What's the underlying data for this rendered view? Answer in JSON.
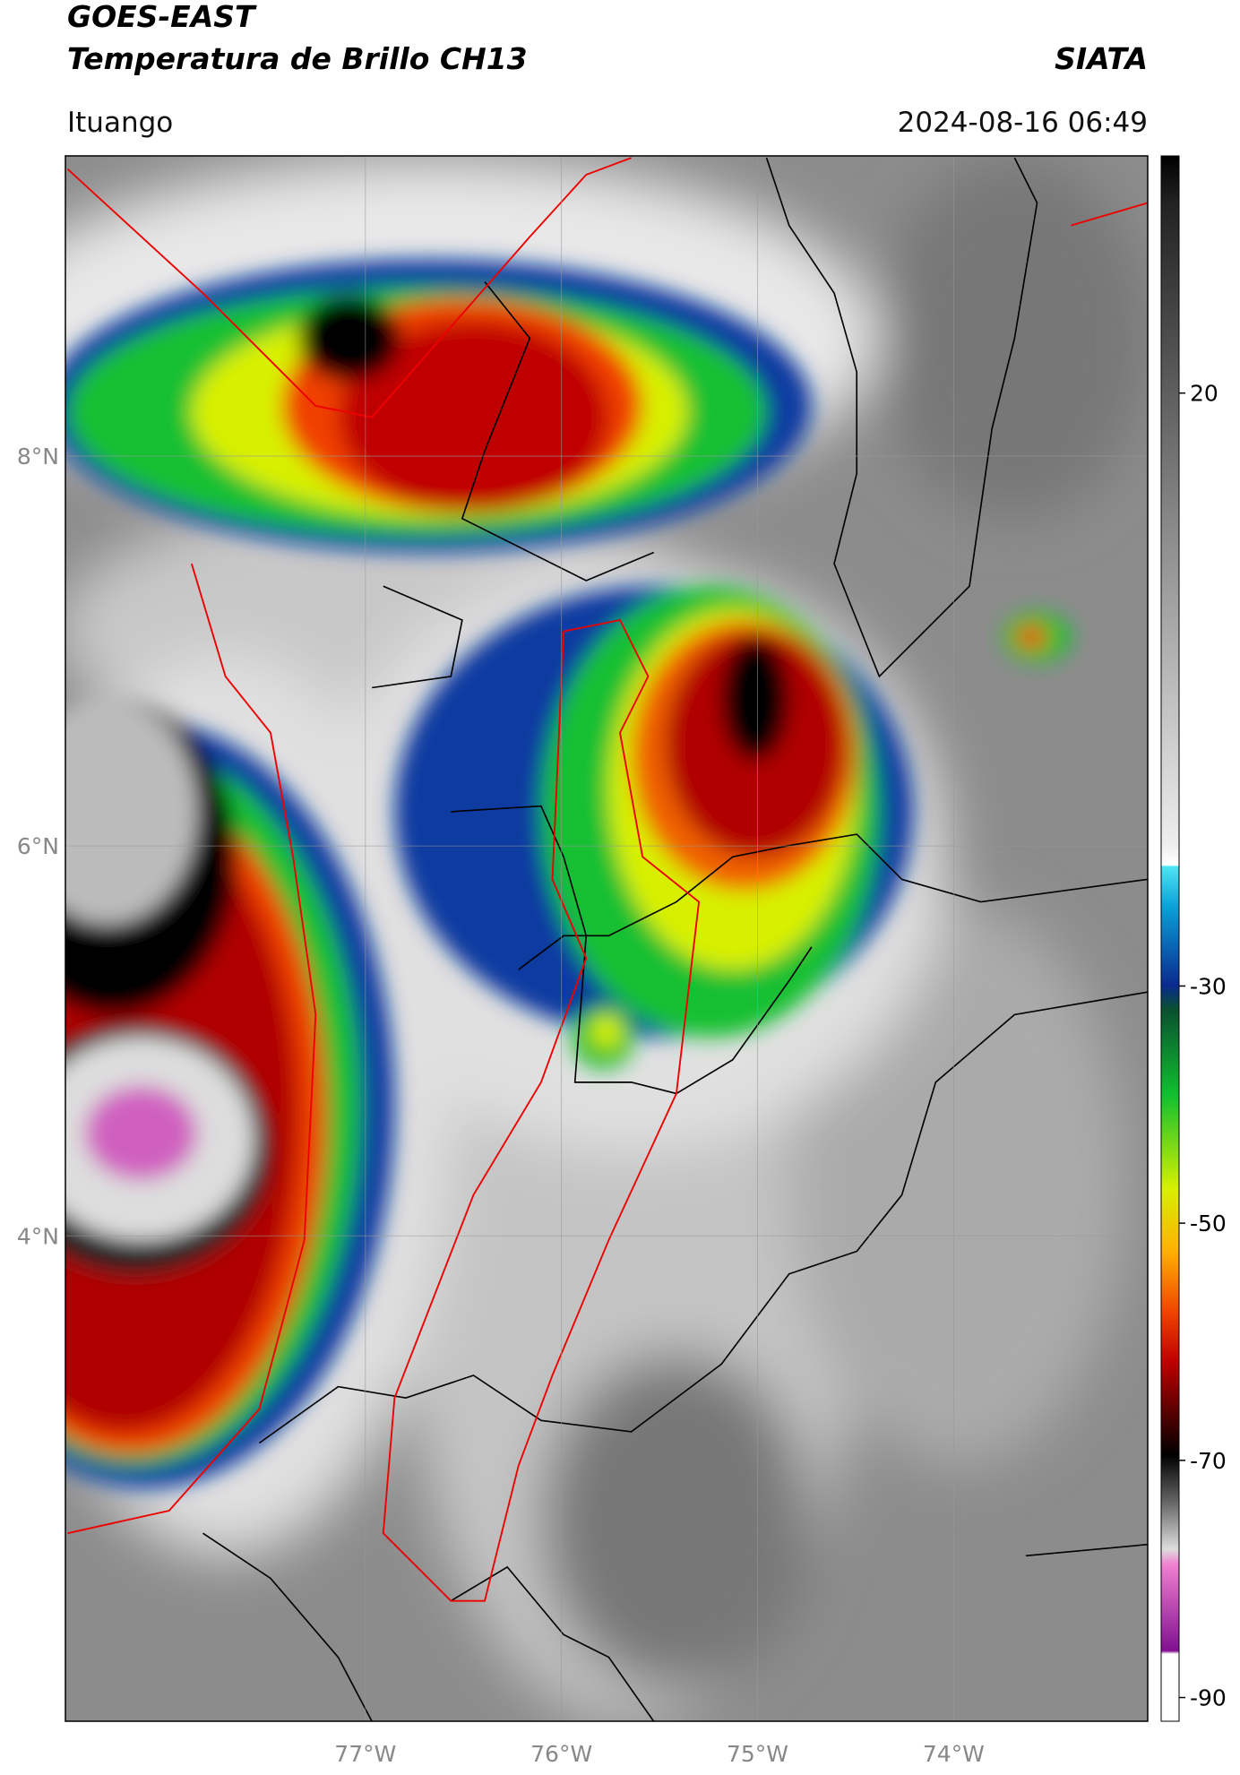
{
  "header": {
    "title_line1": "GOES-EAST",
    "title_line2": "Temperatura de Brillo CH13",
    "org": "SIATA",
    "location": "Ituango",
    "datetime": "2024-08-16 06:49"
  },
  "map": {
    "xlim": [
      -78.53,
      -73.01
    ],
    "ylim": [
      1.51,
      9.54
    ],
    "xticks": [
      {
        "value": -77,
        "label": "77°W"
      },
      {
        "value": -76,
        "label": "76°W"
      },
      {
        "value": -75,
        "label": "75°W"
      },
      {
        "value": -74,
        "label": "74°W"
      }
    ],
    "yticks": [
      {
        "value": 8,
        "label": "8°N"
      },
      {
        "value": 6,
        "label": "6°N"
      },
      {
        "value": 4,
        "label": "4°N"
      }
    ]
  },
  "colorbar": {
    "lim": [
      -92,
      40
    ],
    "ticks": [
      20,
      -30,
      -50,
      -70,
      -90
    ]
  }
}
